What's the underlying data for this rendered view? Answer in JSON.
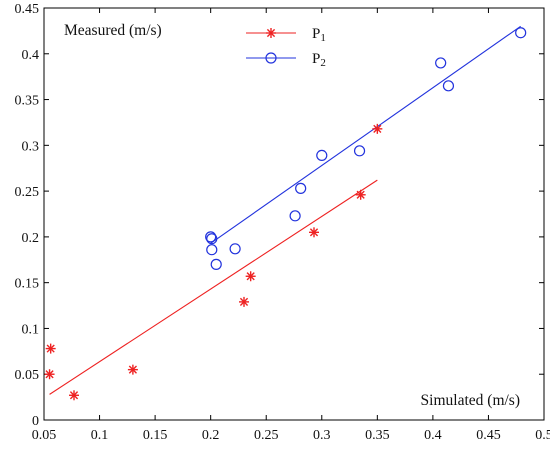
{
  "chart_data": {
    "type": "scatter",
    "title": "",
    "xlabel": "Simulated (m/s)",
    "ylabel": "Measured (m/s)",
    "xlim": [
      0.05,
      0.5
    ],
    "ylim": [
      0,
      0.45
    ],
    "x_ticks": [
      "0.05",
      "0.1",
      "0.15",
      "0.2",
      "0.25",
      "0.3",
      "0.35",
      "0.4",
      "0.45",
      "0.5"
    ],
    "y_ticks": [
      "0",
      "0.05",
      "0.1",
      "0.15",
      "0.2",
      "0.25",
      "0.3",
      "0.35",
      "0.4",
      "0.45"
    ],
    "grid": false,
    "legend_position": "top-center",
    "series": [
      {
        "name": "P",
        "name_subscript": "1",
        "marker": "asterisk",
        "color": "#ee2222",
        "points": [
          {
            "x": 0.055,
            "y": 0.05
          },
          {
            "x": 0.056,
            "y": 0.078
          },
          {
            "x": 0.077,
            "y": 0.027
          },
          {
            "x": 0.13,
            "y": 0.055
          },
          {
            "x": 0.23,
            "y": 0.129
          },
          {
            "x": 0.236,
            "y": 0.157
          },
          {
            "x": 0.293,
            "y": 0.205
          },
          {
            "x": 0.335,
            "y": 0.246
          },
          {
            "x": 0.35,
            "y": 0.318
          }
        ],
        "fit_line": [
          {
            "x": 0.055,
            "y": 0.028
          },
          {
            "x": 0.35,
            "y": 0.262
          }
        ]
      },
      {
        "name": "P",
        "name_subscript": "2",
        "marker": "circle",
        "color": "#2233dd",
        "points": [
          {
            "x": 0.2,
            "y": 0.2
          },
          {
            "x": 0.201,
            "y": 0.198
          },
          {
            "x": 0.201,
            "y": 0.186
          },
          {
            "x": 0.205,
            "y": 0.17
          },
          {
            "x": 0.222,
            "y": 0.187
          },
          {
            "x": 0.276,
            "y": 0.223
          },
          {
            "x": 0.281,
            "y": 0.253
          },
          {
            "x": 0.3,
            "y": 0.289
          },
          {
            "x": 0.334,
            "y": 0.294
          },
          {
            "x": 0.407,
            "y": 0.39
          },
          {
            "x": 0.414,
            "y": 0.365
          },
          {
            "x": 0.479,
            "y": 0.423
          }
        ],
        "fit_line": [
          {
            "x": 0.2,
            "y": 0.193
          },
          {
            "x": 0.479,
            "y": 0.43
          }
        ]
      }
    ]
  }
}
